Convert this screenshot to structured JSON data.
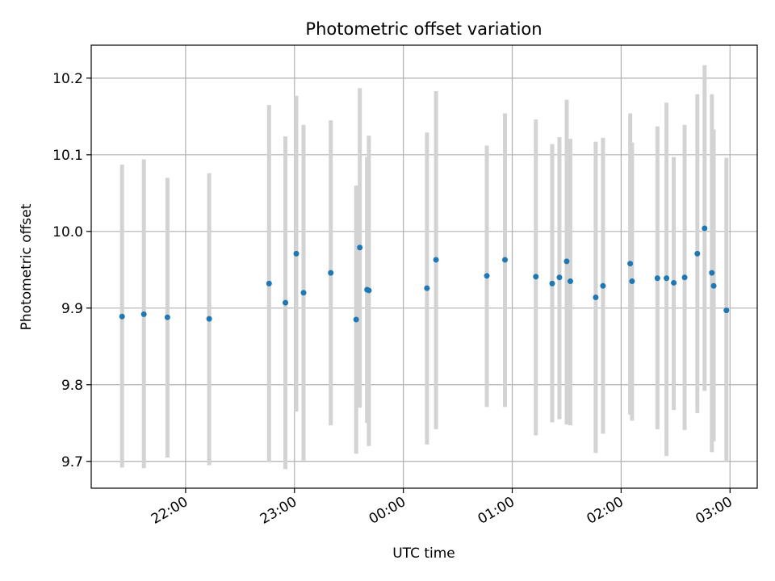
{
  "chart_data": {
    "type": "scatter",
    "title": "Photometric offset variation",
    "xlabel": "UTC time",
    "ylabel": "Photometric offset",
    "grid": true,
    "x_tick_labels": [
      "22:00",
      "23:00",
      "00:00",
      "01:00",
      "02:00",
      "03:00"
    ],
    "y_tick_labels": [
      "9.7",
      "9.8",
      "9.9",
      "10.0",
      "10.1",
      "10.2"
    ],
    "y_ticks": [
      9.7,
      9.8,
      9.9,
      10.0,
      10.1,
      10.2
    ],
    "ylim": [
      9.665,
      10.243
    ],
    "xlim_utc": [
      "21:08",
      "03:15"
    ],
    "colors": {
      "point": "#1f77b4",
      "errorbar": "#d3d3d3",
      "grid": "#b0b0b0"
    },
    "series": [
      {
        "points": [
          {
            "x": "21:25",
            "y": 9.889,
            "ylo": 9.692,
            "yhi": 10.087
          },
          {
            "x": "21:37",
            "y": 9.892,
            "ylo": 9.691,
            "yhi": 10.094
          },
          {
            "x": "21:50",
            "y": 9.888,
            "ylo": 9.705,
            "yhi": 10.07
          },
          {
            "x": "22:13",
            "y": 9.886,
            "ylo": 9.695,
            "yhi": 10.076
          },
          {
            "x": "22:46",
            "y": 9.932,
            "ylo": 9.699,
            "yhi": 10.165
          },
          {
            "x": "22:55",
            "y": 9.907,
            "ylo": 9.69,
            "yhi": 10.124
          },
          {
            "x": "23:01",
            "y": 9.971,
            "ylo": 9.765,
            "yhi": 10.177
          },
          {
            "x": "23:05",
            "y": 9.92,
            "ylo": 9.701,
            "yhi": 10.139
          },
          {
            "x": "23:20",
            "y": 9.946,
            "ylo": 9.747,
            "yhi": 10.145
          },
          {
            "x": "23:34",
            "y": 9.885,
            "ylo": 9.71,
            "yhi": 10.06
          },
          {
            "x": "23:36",
            "y": 9.979,
            "ylo": 9.77,
            "yhi": 10.187
          },
          {
            "x": "23:40",
            "y": 9.924,
            "ylo": 9.75,
            "yhi": 10.097
          },
          {
            "x": "23:41",
            "y": 9.923,
            "ylo": 9.72,
            "yhi": 10.125
          },
          {
            "x": "00:13",
            "y": 9.926,
            "ylo": 9.722,
            "yhi": 10.129
          },
          {
            "x": "00:18",
            "y": 9.963,
            "ylo": 9.742,
            "yhi": 10.183
          },
          {
            "x": "00:46",
            "y": 9.942,
            "ylo": 9.771,
            "yhi": 10.112
          },
          {
            "x": "00:56",
            "y": 9.963,
            "ylo": 9.771,
            "yhi": 10.154
          },
          {
            "x": "01:13",
            "y": 9.941,
            "ylo": 9.734,
            "yhi": 10.146
          },
          {
            "x": "01:22",
            "y": 9.932,
            "ylo": 9.751,
            "yhi": 10.114
          },
          {
            "x": "01:26",
            "y": 9.94,
            "ylo": 9.755,
            "yhi": 10.123
          },
          {
            "x": "01:30",
            "y": 9.961,
            "ylo": 9.748,
            "yhi": 10.172
          },
          {
            "x": "01:32",
            "y": 9.935,
            "ylo": 9.747,
            "yhi": 10.121
          },
          {
            "x": "01:46",
            "y": 9.914,
            "ylo": 9.711,
            "yhi": 10.117
          },
          {
            "x": "01:50",
            "y": 9.929,
            "ylo": 9.736,
            "yhi": 10.122
          },
          {
            "x": "02:05",
            "y": 9.958,
            "ylo": 9.761,
            "yhi": 10.154
          },
          {
            "x": "02:06",
            "y": 9.935,
            "ylo": 9.753,
            "yhi": 10.116
          },
          {
            "x": "02:20",
            "y": 9.939,
            "ylo": 9.742,
            "yhi": 10.137
          },
          {
            "x": "02:25",
            "y": 9.939,
            "ylo": 9.707,
            "yhi": 10.168
          },
          {
            "x": "02:29",
            "y": 9.933,
            "ylo": 9.767,
            "yhi": 10.097
          },
          {
            "x": "02:35",
            "y": 9.94,
            "ylo": 9.741,
            "yhi": 10.139
          },
          {
            "x": "02:42",
            "y": 9.971,
            "ylo": 9.763,
            "yhi": 10.179
          },
          {
            "x": "02:46",
            "y": 10.004,
            "ylo": 9.792,
            "yhi": 10.217
          },
          {
            "x": "02:50",
            "y": 9.946,
            "ylo": 9.712,
            "yhi": 10.179
          },
          {
            "x": "02:51",
            "y": 9.929,
            "ylo": 9.726,
            "yhi": 10.133
          },
          {
            "x": "02:58",
            "y": 9.897,
            "ylo": 9.7,
            "yhi": 10.096
          }
        ]
      }
    ]
  }
}
